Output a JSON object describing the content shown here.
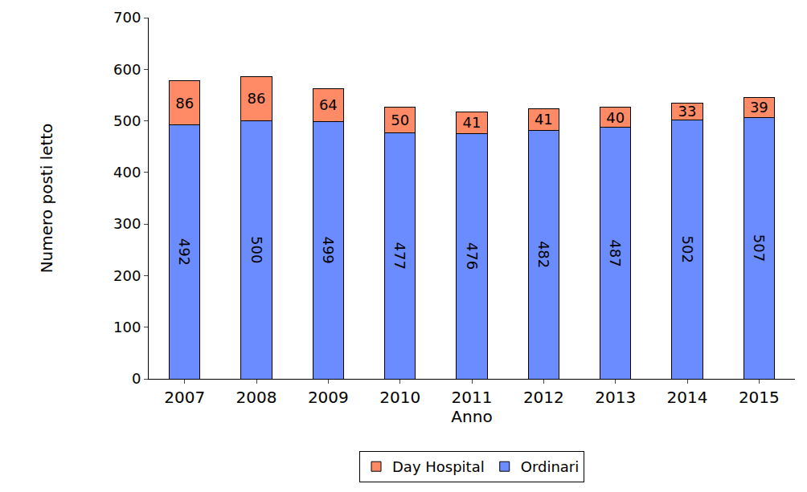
{
  "chart_data": {
    "type": "bar",
    "stacked": true,
    "x_label": "Anno",
    "y_label": "Numero posti letto",
    "categories": [
      "2007",
      "2008",
      "2009",
      "2010",
      "2011",
      "2012",
      "2013",
      "2014",
      "2015"
    ],
    "series": [
      {
        "name": "Ordinari",
        "color": "#6b8cff",
        "values": [
          492,
          500,
          499,
          477,
          476,
          482,
          487,
          502,
          507
        ]
      },
      {
        "name": "Day Hospital",
        "color": "#ff8a66",
        "values": [
          86,
          86,
          64,
          50,
          41,
          41,
          40,
          33,
          39
        ]
      }
    ],
    "ylim": [
      0,
      700
    ],
    "yticks": [
      0,
      100,
      200,
      300,
      400,
      500,
      600,
      700
    ],
    "grid": false,
    "legend": "bottom",
    "data_labels": true
  }
}
